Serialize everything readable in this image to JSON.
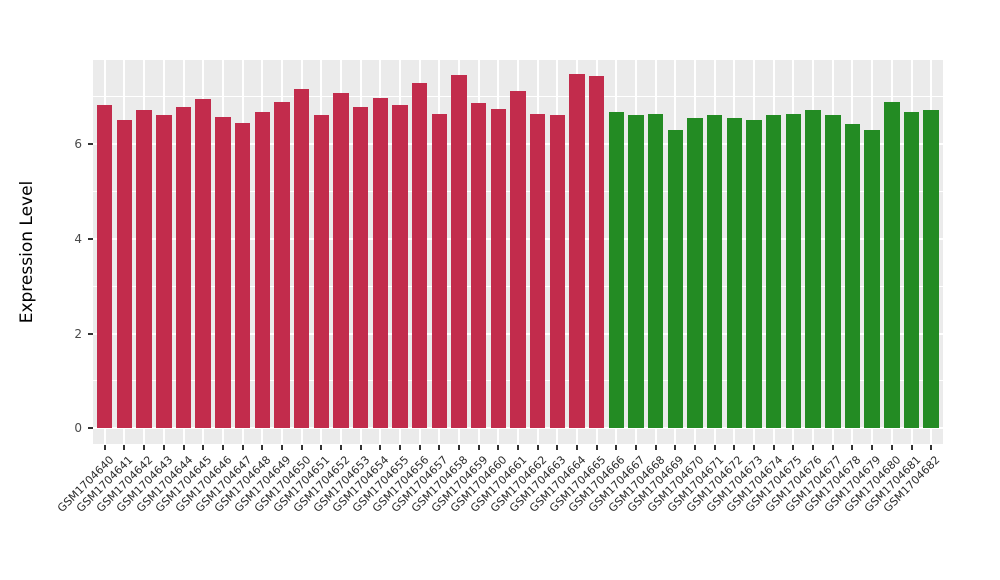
{
  "chart_data": {
    "type": "bar",
    "title": "",
    "xlabel": "",
    "ylabel": "Expression Level",
    "ylim": [
      -0.33,
      7.77
    ],
    "yticks": [
      0,
      2,
      4,
      6
    ],
    "minor_gridlines": [
      1,
      3,
      5,
      7
    ],
    "grid": "on",
    "legend": "none",
    "panel_background": "#EBEBEB",
    "gridline_color": "#ffffff",
    "group_split_index": 26,
    "group_colors": {
      "group1": "#C22C4C",
      "group2": "#238B23"
    },
    "categories": [
      "GSM1704640",
      "GSM1704641",
      "GSM1704642",
      "GSM1704643",
      "GSM1704644",
      "GSM1704645",
      "GSM1704646",
      "GSM1704647",
      "GSM1704648",
      "GSM1704649",
      "GSM1704650",
      "GSM1704651",
      "GSM1704652",
      "GSM1704653",
      "GSM1704654",
      "GSM1704655",
      "GSM1704656",
      "GSM1704657",
      "GSM1704658",
      "GSM1704659",
      "GSM1704660",
      "GSM1704661",
      "GSM1704662",
      "GSM1704663",
      "GSM1704664",
      "GSM1704665",
      "GSM1704666",
      "GSM1704667",
      "GSM1704668",
      "GSM1704669",
      "GSM1704670",
      "GSM1704671",
      "GSM1704672",
      "GSM1704673",
      "GSM1704674",
      "GSM1704675",
      "GSM1704676",
      "GSM1704677",
      "GSM1704678",
      "GSM1704679",
      "GSM1704680",
      "GSM1704681",
      "GSM1704682"
    ],
    "values": [
      6.82,
      6.5,
      6.71,
      6.62,
      6.78,
      6.95,
      6.56,
      6.45,
      6.68,
      6.88,
      7.15,
      6.61,
      7.07,
      6.78,
      6.96,
      6.83,
      7.28,
      6.64,
      7.46,
      6.87,
      6.74,
      7.12,
      6.63,
      6.61,
      7.47,
      7.44,
      6.68,
      6.6,
      6.64,
      6.3,
      6.54,
      6.6,
      6.55,
      6.51,
      6.61,
      6.64,
      6.71,
      6.62,
      6.42,
      6.3,
      6.89,
      6.67,
      6.71
    ]
  }
}
